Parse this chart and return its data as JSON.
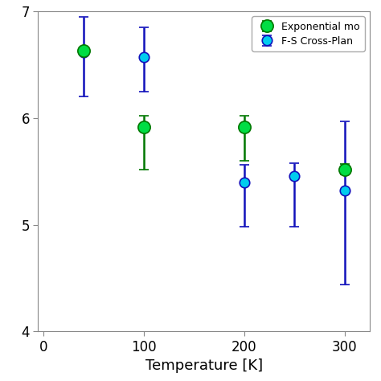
{
  "title": "",
  "xlabel": "Temperature [K]",
  "ylabel": "",
  "xlim": [
    -5,
    325
  ],
  "ylim": [
    4,
    7
  ],
  "yticks": [
    4,
    5,
    6,
    7
  ],
  "xticks": [
    0,
    100,
    200,
    300
  ],
  "series": [
    {
      "label": "Exponential mo",
      "x": [
        40,
        100,
        200,
        300
      ],
      "y": [
        6.63,
        5.92,
        5.92,
        5.52
      ],
      "yerr_low": [
        0.0,
        0.4,
        0.32,
        0.05
      ],
      "yerr_high": [
        0.0,
        0.1,
        0.1,
        0.05
      ],
      "color": "#00dd44",
      "ecolor": "#007700",
      "marker_size": 11,
      "zorder": 4,
      "lw": 1.8
    },
    {
      "label": "F-S Cross-Plan",
      "x": [
        40,
        100,
        200,
        250,
        300
      ],
      "y": [
        6.62,
        6.57,
        5.4,
        5.46,
        5.32
      ],
      "yerr_low": [
        0.42,
        0.32,
        0.42,
        0.48,
        0.88
      ],
      "yerr_high": [
        0.33,
        0.28,
        0.16,
        0.12,
        0.65
      ],
      "color": "#00ccee",
      "ecolor": "#1111bb",
      "marker_size": 9,
      "zorder": 3,
      "lw": 1.8
    }
  ],
  "bg_color": "#ffffff",
  "capsize": 4,
  "capthick": 1.5,
  "elinewidth": 1.8,
  "legend_fontsize": 9,
  "tick_labelsize": 12,
  "xlabel_fontsize": 13
}
